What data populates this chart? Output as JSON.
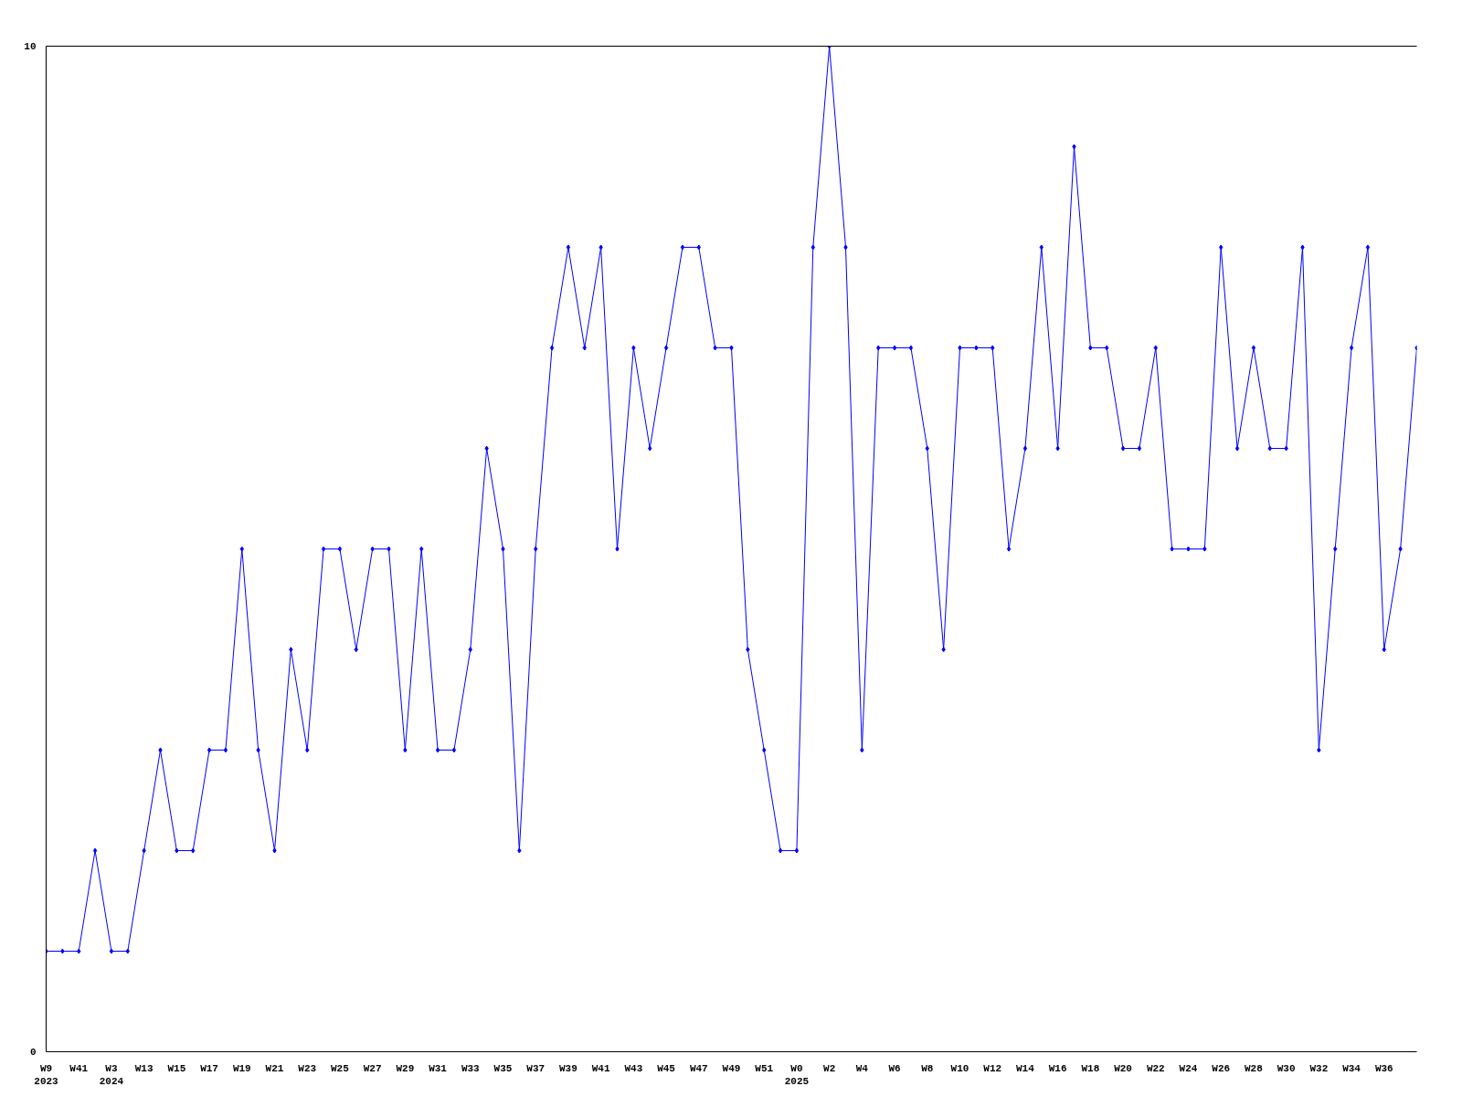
{
  "chart_data": {
    "type": "line",
    "categories": [
      "W9\n2023",
      null,
      "W41",
      null,
      "W3\n2024",
      null,
      "W13",
      null,
      "W15",
      null,
      "W17",
      null,
      "W19",
      null,
      "W21",
      null,
      "W23",
      null,
      "W25",
      null,
      "W27",
      null,
      "W29",
      null,
      "W31",
      null,
      "W33",
      null,
      "W35",
      null,
      "W37",
      null,
      "W39",
      null,
      "W41",
      null,
      "W43",
      null,
      "W45",
      null,
      "W47",
      null,
      "W49",
      null,
      "W51",
      null,
      "W0\n2025",
      null,
      "W2",
      null,
      "W4",
      null,
      "W6",
      null,
      "W8",
      null,
      "W10",
      null,
      "W12",
      null,
      "W14",
      null,
      "W16",
      null,
      "W18",
      null,
      "W20",
      null,
      "W22",
      null,
      "W24",
      null,
      "W26",
      null,
      "W28",
      null,
      "W30",
      null,
      "W32",
      null,
      "W34",
      null,
      "W36",
      null,
      null
    ],
    "series": [
      {
        "color": "#0000ff",
        "values": [
          1,
          1,
          1,
          2,
          1,
          1,
          2,
          3,
          2,
          2,
          3,
          3,
          5,
          3,
          2,
          4,
          3,
          5,
          5,
          4,
          5,
          5,
          3,
          5,
          3,
          3,
          4,
          6,
          5,
          2,
          5,
          7,
          8,
          7,
          8,
          5,
          7,
          6,
          7,
          8,
          8,
          7,
          7,
          4,
          3,
          2,
          2,
          8,
          10,
          8,
          3,
          7,
          7,
          7,
          6,
          4,
          7,
          7,
          7,
          5,
          6,
          8,
          6,
          9,
          7,
          7,
          6,
          6,
          7,
          5,
          5,
          5,
          8,
          6,
          7,
          6,
          6,
          8,
          3,
          5,
          7,
          8,
          4,
          5,
          7
        ]
      }
    ],
    "ylim": [
      0,
      10
    ],
    "yticks": [
      0,
      10
    ],
    "grid": false,
    "marker": "diamond",
    "line_style": "solid"
  }
}
